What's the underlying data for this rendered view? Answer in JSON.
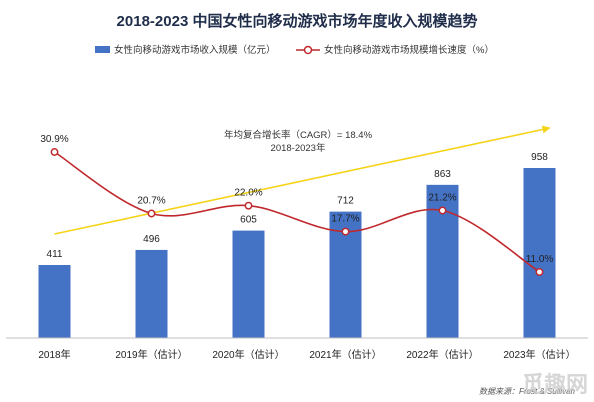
{
  "chart_data": {
    "type": "bar+line",
    "title": "2018-2023  中国女性向移动游戏市场年度收入规模趋势",
    "categories": [
      "2018年",
      "2019年（估计）",
      "2020年（估计）",
      "2021年（估计）",
      "2022年（估计）",
      "2023年（估计）"
    ],
    "series": [
      {
        "name": "女性向移动游戏市场收入规模（亿元）",
        "type": "bar",
        "color": "#4472c4",
        "values": [
          411,
          496,
          605,
          712,
          863,
          958
        ],
        "labels": [
          "411",
          "496",
          "605",
          "712",
          "863",
          "958"
        ]
      },
      {
        "name": "女性向移动游戏市场规模增长速度（%）",
        "type": "line",
        "color": "#c0282d",
        "values": [
          30.9,
          20.7,
          22.0,
          17.7,
          21.2,
          11.0
        ],
        "labels": [
          "30.9%",
          "20.7%",
          "22.0%",
          "17.7%",
          "21.2%",
          "11.0%"
        ]
      }
    ],
    "trend_arrow_color": "#f5d316",
    "annotation": {
      "line1": "年均复合增长率（CAGR）= 18.4%",
      "line2": "2018-2023年"
    },
    "legend_position": "top",
    "grid": false,
    "source": "数据来源：Frost & Sullivan",
    "watermark": "觅趣网"
  }
}
